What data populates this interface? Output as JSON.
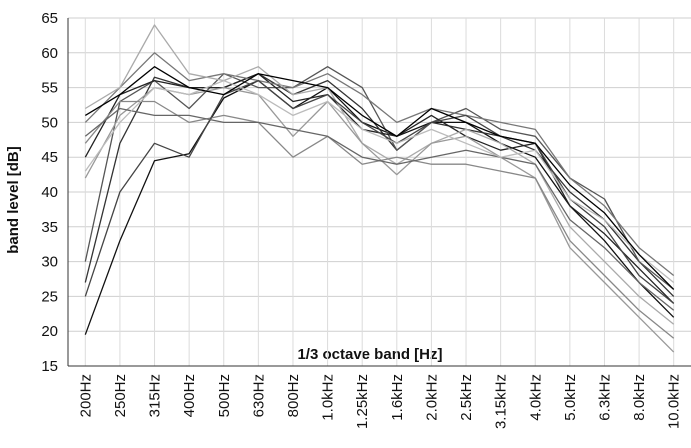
{
  "chart_data": {
    "type": "line",
    "y_label": "band level [dB]",
    "x_label": "1/3 octave band [Hz]",
    "categories": [
      "200Hz",
      "250Hz",
      "315Hz",
      "400Hz",
      "500Hz",
      "630Hz",
      "800Hz",
      "1.0kHz",
      "1.25kHz",
      "1.6kHz",
      "2.0kHz",
      "2.5kHz",
      "3.15kHz",
      "4.0kHz",
      "5.0kHz",
      "6.3kHz",
      "8.0kHz",
      "10.0kHz"
    ],
    "series": [
      {
        "color": "#111111",
        "values": [
          19.5,
          33,
          44.5,
          45.5,
          53.5,
          56,
          52,
          55,
          50,
          48,
          50,
          50,
          47,
          45,
          38,
          33,
          27,
          22
        ]
      },
      {
        "color": "#333333",
        "values": [
          27,
          47,
          56.5,
          55,
          55,
          57,
          54,
          56,
          52,
          46,
          50,
          49,
          48,
          46,
          40,
          36,
          30,
          25
        ]
      },
      {
        "color": "#555555",
        "values": [
          30,
          53,
          56,
          52,
          57,
          55,
          55,
          58,
          55,
          46,
          50,
          52,
          49,
          48,
          42,
          39,
          30,
          26
        ]
      },
      {
        "color": "#222222",
        "values": [
          45,
          54,
          56,
          55,
          55,
          57,
          53,
          54,
          49,
          48,
          51,
          48,
          46,
          47,
          38,
          34,
          29,
          24
        ]
      },
      {
        "color": "#777777",
        "values": [
          50,
          55,
          60,
          56,
          57,
          56,
          55,
          57,
          54,
          50,
          52,
          51,
          50,
          49,
          42,
          38,
          32,
          28
        ]
      },
      {
        "color": "#aaaaaa",
        "values": [
          52,
          55,
          64,
          57,
          56,
          58,
          54,
          55,
          47,
          44,
          47,
          49,
          47,
          44,
          35,
          30,
          25,
          21
        ]
      },
      {
        "color": "#999999",
        "values": [
          42,
          51,
          55,
          54,
          55,
          54,
          48,
          53,
          47,
          42.5,
          47,
          48,
          45,
          42,
          32,
          27,
          22,
          17
        ]
      },
      {
        "color": "#888888",
        "values": [
          47,
          53,
          53,
          50,
          51,
          50,
          45,
          48,
          44,
          45,
          44,
          44,
          43,
          42,
          33,
          28,
          23,
          19
        ]
      },
      {
        "color": "#444444",
        "values": [
          25,
          40,
          47,
          45,
          54,
          56,
          52,
          54,
          50,
          47,
          50,
          51,
          48,
          47,
          39,
          35,
          28,
          24
        ]
      },
      {
        "color": "#666666",
        "values": [
          48,
          52,
          51,
          51,
          50,
          50,
          49,
          48,
          45,
          44,
          45,
          46,
          45,
          44,
          36,
          32,
          27,
          23
        ]
      },
      {
        "color": "#bbbbbb",
        "values": [
          43,
          50,
          55,
          54,
          56,
          54,
          51,
          53,
          49,
          47,
          49,
          47,
          45,
          46,
          39,
          36,
          31,
          27
        ]
      },
      {
        "color": "#000000",
        "values": [
          51,
          54,
          58,
          55,
          54,
          57,
          56,
          55,
          51,
          48,
          52,
          50,
          48,
          47,
          41,
          37,
          31,
          26
        ]
      }
    ],
    "ylim": [
      15,
      65
    ],
    "yticks": [
      15,
      20,
      25,
      30,
      35,
      40,
      45,
      50,
      55,
      60,
      65
    ],
    "grid": true
  }
}
